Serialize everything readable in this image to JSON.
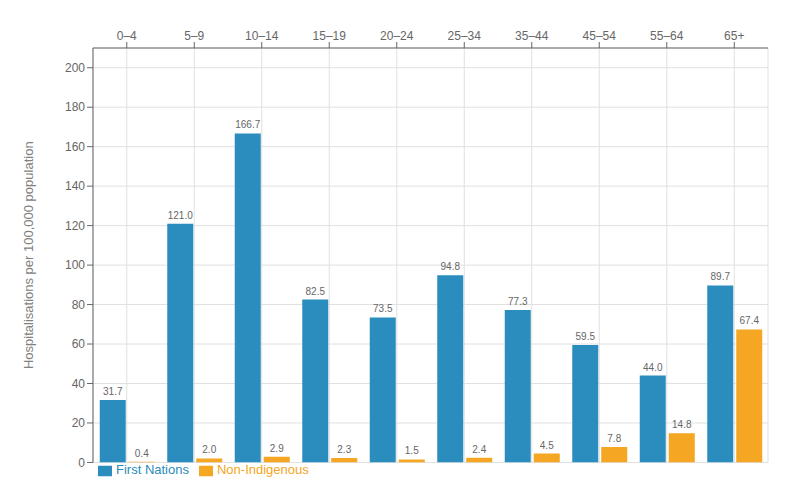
{
  "chart_data": {
    "type": "bar",
    "categories": [
      "0–4",
      "5–9",
      "10–14",
      "15–19",
      "20–24",
      "25–34",
      "35–44",
      "45–54",
      "55–64",
      "65+"
    ],
    "series": [
      {
        "name": "First Nations",
        "color": "#2B8CBE",
        "values": [
          31.7,
          121.0,
          166.7,
          82.5,
          73.5,
          94.8,
          77.3,
          59.5,
          44.0,
          89.7
        ],
        "value_labels": [
          "31.7",
          "121.0",
          "166.7",
          "82.5",
          "73.5",
          "94.8",
          "77.3",
          "59.5",
          "44.0",
          "89.7"
        ]
      },
      {
        "name": "Non-Indigenous",
        "color": "#F5A623",
        "values": [
          0.4,
          2.0,
          2.9,
          2.3,
          1.5,
          2.4,
          4.5,
          7.8,
          14.8,
          67.4
        ],
        "value_labels": [
          "0.4",
          "2.0",
          "2.9",
          "2.3",
          "1.5",
          "2.4",
          "4.5",
          "7.8",
          "14.8",
          "67.4"
        ]
      }
    ],
    "ylabel": "Hospitalisations per 100,000 population",
    "ylim": [
      0,
      210
    ],
    "yticks": [
      0,
      20,
      40,
      60,
      80,
      100,
      120,
      140,
      160,
      180,
      200
    ],
    "grid": true,
    "legend": "lower left",
    "data_labels": true
  }
}
